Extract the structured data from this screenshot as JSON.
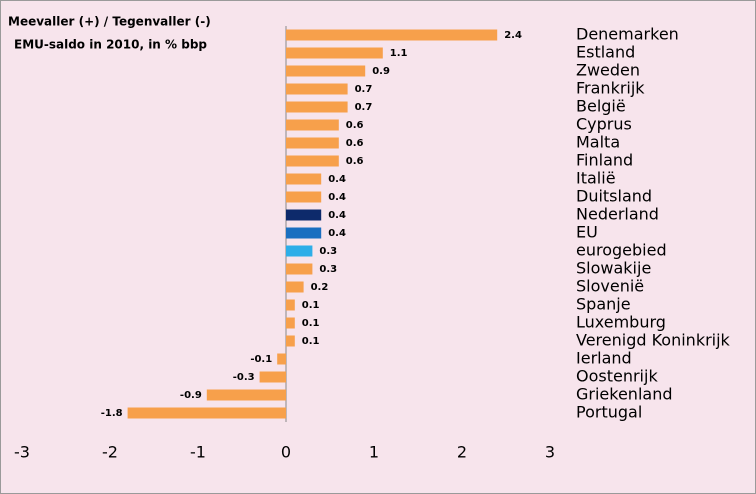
{
  "chart_data": {
    "type": "barh",
    "title": [
      "Meevaller (+) / Tegenvaller (-)",
      "EMU-saldo in 2010, in % bbp"
    ],
    "categories": [
      "Denemarken",
      "Estland",
      "Zweden",
      "Frankrijk",
      "België",
      "Cyprus",
      "Malta",
      "Finland",
      "Italië",
      "Duitsland",
      "Nederland",
      "EU",
      "eurogebied",
      "Slowakije",
      "Slovenië",
      "Spanje",
      "Luxemburg",
      "Verenigd Koninkrijk",
      "Ierland",
      "Oostenrijk",
      "Griekenland",
      "Portugal"
    ],
    "values": [
      2.4,
      1.1,
      0.9,
      0.7,
      0.7,
      0.6,
      0.6,
      0.6,
      0.4,
      0.4,
      0.4,
      0.4,
      0.3,
      0.3,
      0.2,
      0.1,
      0.1,
      0.1,
      -0.1,
      -0.3,
      -0.9,
      -1.8
    ],
    "colors": [
      "#f7a04b",
      "#f7a04b",
      "#f7a04b",
      "#f7a04b",
      "#f7a04b",
      "#f7a04b",
      "#f7a04b",
      "#f7a04b",
      "#f7a04b",
      "#f7a04b",
      "#0d2a6b",
      "#1a6fc0",
      "#2eaee8",
      "#f7a04b",
      "#f7a04b",
      "#f7a04b",
      "#f7a04b",
      "#f7a04b",
      "#f7a04b",
      "#f7a04b",
      "#f7a04b",
      "#f7a04b"
    ],
    "xlim": [
      -3,
      3
    ],
    "xticks": [
      -3,
      -2,
      -1,
      0,
      1,
      2,
      3
    ]
  }
}
